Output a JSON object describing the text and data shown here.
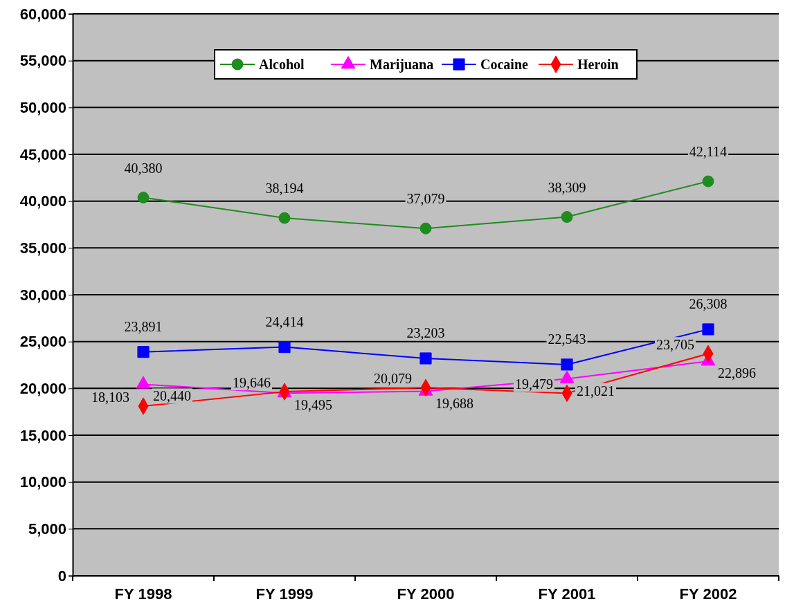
{
  "chart_data": {
    "type": "line",
    "categories": [
      "FY 1998",
      "FY 1999",
      "FY 2000",
      "FY 2001",
      "FY 2002"
    ],
    "series": [
      {
        "name": "Alcohol",
        "color": "#1e8c1e",
        "marker": "circle",
        "values": [
          40380,
          38194,
          37079,
          38309,
          42114
        ],
        "value_labels": [
          "40,380",
          "38,194",
          "37,079",
          "38,309",
          "42,114"
        ]
      },
      {
        "name": "Marijuana",
        "color": "#ff00ff",
        "marker": "triangle",
        "values": [
          20440,
          19495,
          19688,
          21021,
          22896
        ],
        "value_labels": [
          "20,440",
          "19,495",
          "19,688",
          "21,021",
          "22,896"
        ]
      },
      {
        "name": "Cocaine",
        "color": "#0000ff",
        "marker": "square",
        "values": [
          23891,
          24414,
          23203,
          22543,
          26308
        ],
        "value_labels": [
          "23,891",
          "24,414",
          "23,203",
          "22,543",
          "26,308"
        ]
      },
      {
        "name": "Heroin",
        "color": "#ff0000",
        "marker": "diamond",
        "values": [
          18103,
          19646,
          20079,
          19479,
          23705
        ],
        "value_labels": [
          "18,103",
          "19,646",
          "20,079",
          "19,479",
          "23,705"
        ]
      }
    ],
    "ylim": [
      0,
      60000
    ],
    "yticks": [
      {
        "value": 0,
        "label": "0"
      },
      {
        "value": 5000,
        "label": "5,000"
      },
      {
        "value": 10000,
        "label": "10,000"
      },
      {
        "value": 15000,
        "label": "15,000"
      },
      {
        "value": 20000,
        "label": "20,000"
      },
      {
        "value": 25000,
        "label": "25,000"
      },
      {
        "value": 30000,
        "label": "30,000"
      },
      {
        "value": 35000,
        "label": "35,000"
      },
      {
        "value": 40000,
        "label": "40,000"
      },
      {
        "value": 45000,
        "label": "45,000"
      },
      {
        "value": 50000,
        "label": "50,000"
      },
      {
        "value": 55000,
        "label": "55,000"
      },
      {
        "value": 60000,
        "label": "60,000"
      }
    ],
    "grid": "y",
    "legend": "top"
  }
}
